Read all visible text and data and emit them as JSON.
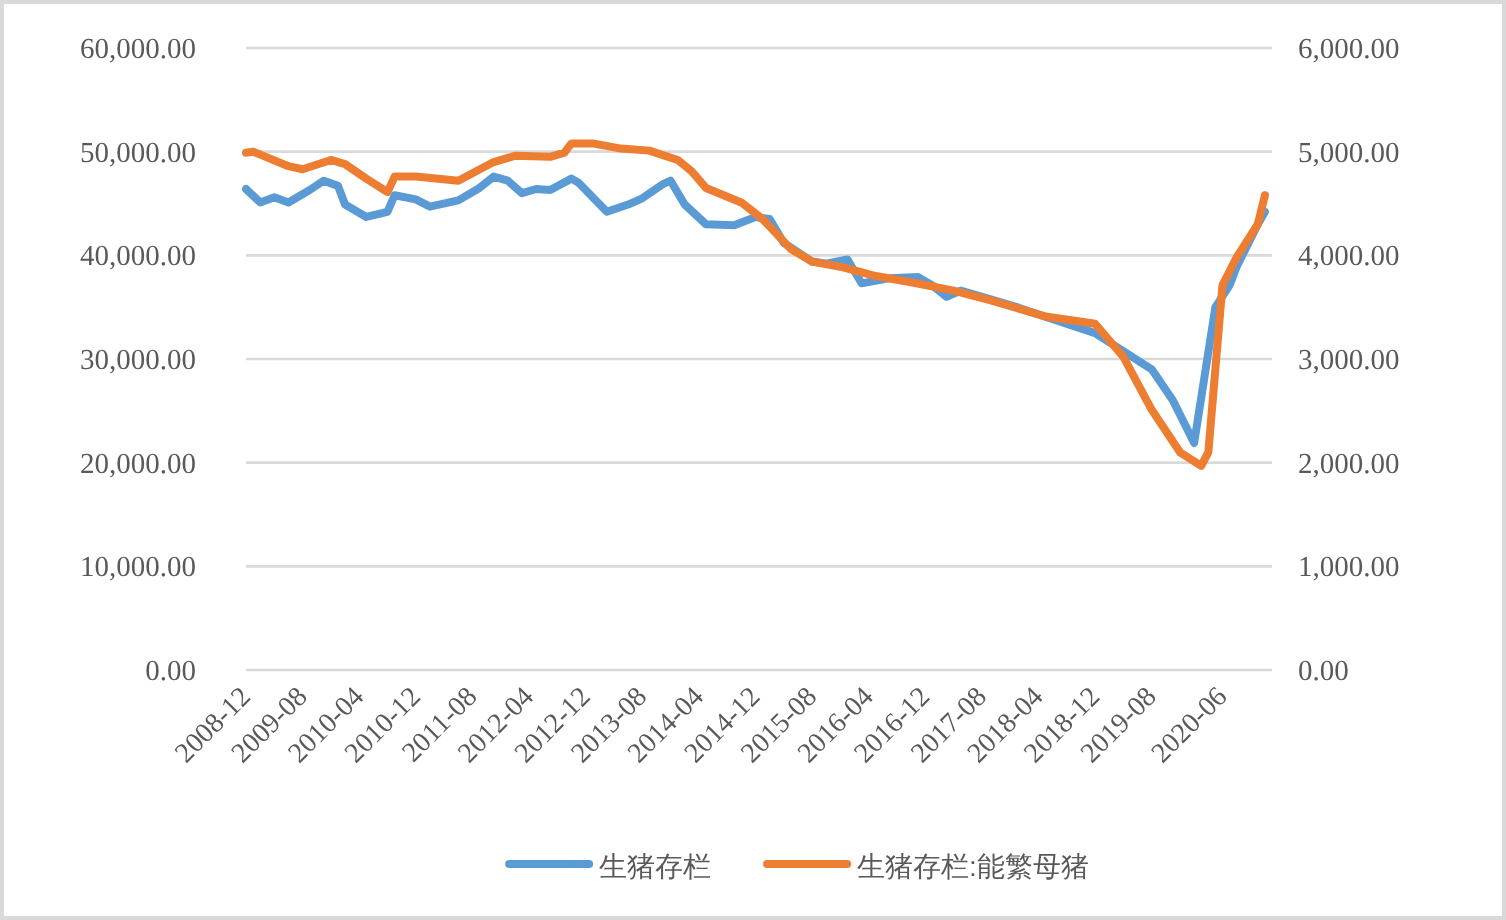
{
  "chart_data": {
    "type": "line",
    "xlim": [
      "2008-12",
      "2021-01"
    ],
    "xticks": [
      "2008-12",
      "2009-08",
      "2010-04",
      "2010-12",
      "2011-08",
      "2012-04",
      "2012-12",
      "2013-08",
      "2014-04",
      "2014-12",
      "2015-08",
      "2016-04",
      "2016-12",
      "2017-08",
      "2018-04",
      "2018-12",
      "2019-08",
      "2020-06"
    ],
    "ylim": [
      0,
      60000
    ],
    "yticks": [
      {
        "value": 0,
        "label": "0.00"
      },
      {
        "value": 10000,
        "label": "10,000.00"
      },
      {
        "value": 20000,
        "label": "20,000.00"
      },
      {
        "value": 30000,
        "label": "30,000.00"
      },
      {
        "value": 40000,
        "label": "40,000.00"
      },
      {
        "value": 50000,
        "label": "50,000.00"
      },
      {
        "value": 60000,
        "label": "60,000.00"
      }
    ],
    "y2lim": [
      0,
      6000
    ],
    "y2ticks": [
      {
        "value": 0,
        "label": "0.00"
      },
      {
        "value": 1000,
        "label": "1,000.00"
      },
      {
        "value": 2000,
        "label": "2,000.00"
      },
      {
        "value": 3000,
        "label": "3,000.00"
      },
      {
        "value": 4000,
        "label": "4,000.00"
      },
      {
        "value": 5000,
        "label": "5,000.00"
      },
      {
        "value": 6000,
        "label": "6,000.00"
      }
    ],
    "grid": "y",
    "legend": "bottom",
    "series": [
      {
        "name": "生猪存栏",
        "color": "#5b9bd5",
        "axis": "y",
        "x": [
          "2008-12",
          "2009-02",
          "2009-04",
          "2009-06",
          "2009-09",
          "2009-11",
          "2010-01",
          "2010-02",
          "2010-05",
          "2010-08",
          "2010-09",
          "2010-12",
          "2011-02",
          "2011-06",
          "2011-09",
          "2011-11",
          "2012-01",
          "2012-03",
          "2012-05",
          "2012-07",
          "2012-10",
          "2012-11",
          "2013-03",
          "2013-06",
          "2013-08",
          "2013-11",
          "2013-12",
          "2014-02",
          "2014-05",
          "2014-09",
          "2014-12",
          "2015-02",
          "2015-04",
          "2015-08",
          "2015-10",
          "2016-01",
          "2016-03",
          "2016-07",
          "2016-11",
          "2017-01",
          "2017-03",
          "2017-05",
          "2017-09",
          "2018-01",
          "2018-04",
          "2018-12",
          "2019-08",
          "2019-11",
          "2020-02",
          "2020-05",
          "2020-07",
          "2020-08",
          "2020-11",
          "2020-12"
        ],
        "values": [
          46400,
          45100,
          45600,
          45100,
          46300,
          47200,
          46700,
          44900,
          43700,
          44200,
          45800,
          45400,
          44700,
          45300,
          46500,
          47600,
          47200,
          46000,
          46400,
          46300,
          47400,
          47000,
          44200,
          44900,
          45500,
          46900,
          47200,
          44900,
          43000,
          42900,
          43700,
          43500,
          41200,
          39400,
          39200,
          39600,
          37300,
          37800,
          37900,
          37100,
          36000,
          36600,
          35800,
          35000,
          34300,
          32500,
          29000,
          26000,
          21900,
          35000,
          37100,
          38900,
          43000,
          44200
        ]
      },
      {
        "name": "生猪存栏:能繁母猪",
        "color": "#ed7d31",
        "axis": "y2",
        "x": [
          "2008-12",
          "2009-01",
          "2009-06",
          "2009-08",
          "2009-12",
          "2010-02",
          "2010-05",
          "2010-08",
          "2010-09",
          "2010-12",
          "2011-06",
          "2011-11",
          "2012-02",
          "2012-07",
          "2012-09",
          "2012-10",
          "2013-01",
          "2013-05",
          "2013-09",
          "2014-01",
          "2014-03",
          "2014-05",
          "2014-10",
          "2015-01",
          "2015-05",
          "2015-08",
          "2015-12",
          "2016-05",
          "2016-10",
          "2017-04",
          "2017-09",
          "2018-03",
          "2018-05",
          "2018-12",
          "2019-04",
          "2019-08",
          "2019-12",
          "2020-03",
          "2020-04",
          "2020-06",
          "2020-08",
          "2020-11",
          "2020-12"
        ],
        "values": [
          4990,
          5000,
          4860,
          4830,
          4920,
          4880,
          4740,
          4610,
          4760,
          4760,
          4720,
          4900,
          4960,
          4950,
          4990,
          5080,
          5080,
          5030,
          5010,
          4920,
          4810,
          4650,
          4510,
          4350,
          4060,
          3940,
          3890,
          3800,
          3740,
          3660,
          3570,
          3450,
          3410,
          3340,
          3020,
          2510,
          2100,
          1970,
          2100,
          3710,
          3980,
          4300,
          4580
        ]
      }
    ]
  }
}
